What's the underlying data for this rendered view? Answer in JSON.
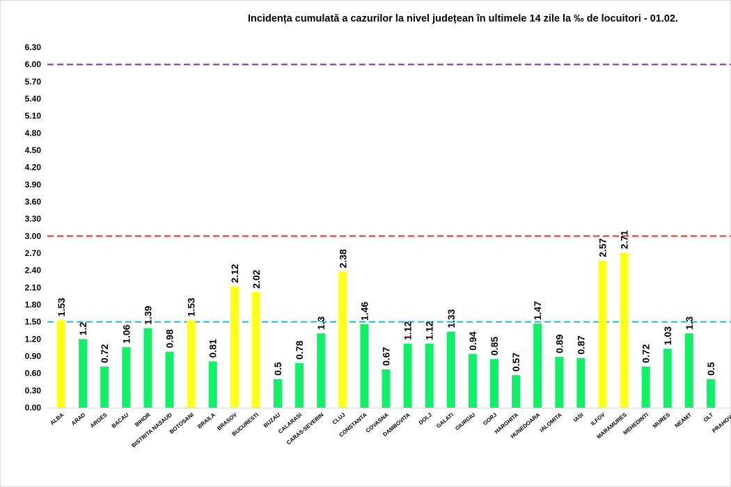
{
  "chart_data": {
    "type": "bar",
    "title": "Incidența cumulată a cazurilor la nivel județean în ultimele 14 zile la ‰ de locuitori - 01.02.",
    "xlabel": "",
    "ylabel": "",
    "ylim": [
      0,
      6.3
    ],
    "yticks": [
      "0.00",
      "0.30",
      "0.60",
      "0.90",
      "1.20",
      "1.50",
      "1.80",
      "2.10",
      "2.40",
      "2.70",
      "3.00",
      "3.30",
      "3.60",
      "3.90",
      "4.20",
      "4.50",
      "4.80",
      "5.10",
      "5.40",
      "5.70",
      "6.00",
      "6.30"
    ],
    "categories": [
      "ALBA",
      "ARAD",
      "ARGES",
      "BACAU",
      "BIHOR",
      "BISTRITA NASAUD",
      "BOTOSANI",
      "BRAILA",
      "BRASOV",
      "BUCURESTI",
      "BUZAU",
      "CALARASI",
      "CARAS-SEVERIN",
      "CLUJ",
      "CONSTANTA",
      "COVASNA",
      "DAMBOVITA",
      "DOLJ",
      "GALATI",
      "GIURGIU",
      "GORJ",
      "HARGHITA",
      "HUNEDOARA",
      "IALOMITA",
      "IASI",
      "ILFOV",
      "MARAMURES",
      "MEHEDINTI",
      "MURES",
      "NEAMT",
      "OLT",
      "PRAHOVA"
    ],
    "values": [
      1.53,
      1.2,
      0.72,
      1.06,
      1.39,
      0.98,
      1.53,
      0.81,
      2.12,
      2.02,
      0.5,
      0.78,
      1.3,
      2.38,
      1.46,
      0.67,
      1.12,
      1.12,
      1.33,
      0.94,
      0.85,
      0.57,
      1.47,
      0.89,
      0.87,
      2.57,
      2.71,
      0.72,
      1.03,
      1.3,
      0.5,
      null
    ],
    "data_labels": [
      "1.53",
      "1.2",
      "0.72",
      "1.06",
      "1.39",
      "0.98",
      "1.53",
      "0.81",
      "2.12",
      "2.02",
      "0.5",
      "0.78",
      "1.3",
      "2.38",
      "1.46",
      "0.67",
      "1.12",
      "1.12",
      "1.33",
      "0.94",
      "0.85",
      "0.57",
      "1.47",
      "0.89",
      "0.87",
      "2.57",
      "2.71",
      "0.72",
      "1.03",
      "1.3",
      "0.5",
      ""
    ],
    "reference_lines": [
      {
        "value": 1.5,
        "color": "#1fb3d6"
      },
      {
        "value": 3.0,
        "color": "#e52a2a"
      },
      {
        "value": 6.0,
        "color": "#7a2fa6"
      }
    ],
    "colors": {
      "below_threshold": "#12f06a",
      "above_threshold": "#ffff1a"
    },
    "color_threshold": 1.5,
    "grid": false,
    "legend": "none"
  }
}
